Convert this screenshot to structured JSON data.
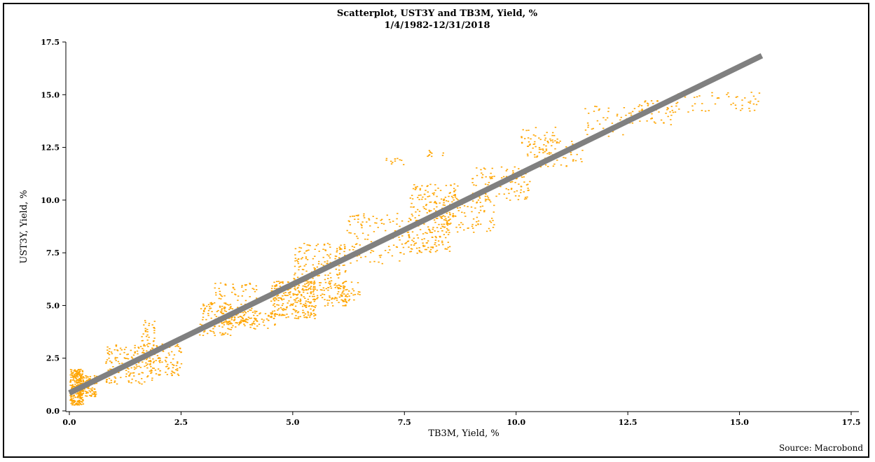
{
  "chart_data": {
    "type": "scatter",
    "title": "Scatterplot, UST3Y and TB3M, Yield, %",
    "subtitle": "1/4/1982-12/31/2018",
    "xlabel": "TB3M, Yield, %",
    "ylabel": "UST3Y, Yield, %",
    "source": "Source: Macrobond",
    "xlim": [
      0,
      17.5
    ],
    "ylim": [
      0,
      17.5
    ],
    "xticks": [
      "0.0",
      "2.5",
      "5.0",
      "7.5",
      "10.0",
      "12.5",
      "15.0",
      "17.5"
    ],
    "yticks": [
      "0.0",
      "2.5",
      "5.0",
      "7.5",
      "10.0",
      "12.5",
      "15.0",
      "17.5"
    ],
    "grid": false,
    "colors": {
      "points": "#ffa500",
      "trend": "#808080"
    },
    "trendline": {
      "x": [
        0.0,
        15.5
      ],
      "y": [
        0.85,
        16.85
      ]
    },
    "point_clusters": [
      {
        "x": [
          0.0,
          0.3
        ],
        "y": [
          0.3,
          2.0
        ],
        "n": 260
      },
      {
        "x": [
          0.1,
          0.6
        ],
        "y": [
          0.7,
          1.7
        ],
        "n": 120
      },
      {
        "x": [
          0.8,
          1.9
        ],
        "y": [
          1.3,
          3.2
        ],
        "n": 150
      },
      {
        "x": [
          1.6,
          1.9
        ],
        "y": [
          2.2,
          4.4
        ],
        "n": 60
      },
      {
        "x": [
          1.9,
          2.5
        ],
        "y": [
          1.7,
          3.2
        ],
        "n": 80
      },
      {
        "x": [
          2.9,
          3.6
        ],
        "y": [
          3.6,
          5.3
        ],
        "n": 110
      },
      {
        "x": [
          3.2,
          4.2
        ],
        "y": [
          4.2,
          6.1
        ],
        "n": 100
      },
      {
        "x": [
          3.6,
          4.6
        ],
        "y": [
          3.9,
          4.8
        ],
        "n": 90
      },
      {
        "x": [
          4.5,
          5.5
        ],
        "y": [
          4.4,
          6.2
        ],
        "n": 260
      },
      {
        "x": [
          5.0,
          6.2
        ],
        "y": [
          5.0,
          8.0
        ],
        "n": 220
      },
      {
        "x": [
          5.7,
          6.5
        ],
        "y": [
          5.2,
          6.2
        ],
        "n": 60
      },
      {
        "x": [
          6.2,
          7.5
        ],
        "y": [
          7.0,
          9.4
        ],
        "n": 110
      },
      {
        "x": [
          7.5,
          8.5
        ],
        "y": [
          7.5,
          9.2
        ],
        "n": 150
      },
      {
        "x": [
          7.6,
          8.7
        ],
        "y": [
          9.2,
          10.8
        ],
        "n": 110
      },
      {
        "x": [
          8.3,
          9.5
        ],
        "y": [
          8.5,
          10.3
        ],
        "n": 100
      },
      {
        "x": [
          9.0,
          10.3
        ],
        "y": [
          10.0,
          11.6
        ],
        "n": 110
      },
      {
        "x": [
          10.1,
          10.9
        ],
        "y": [
          12.0,
          13.5
        ],
        "n": 60
      },
      {
        "x": [
          10.5,
          11.5
        ],
        "y": [
          11.6,
          13.0
        ],
        "n": 50
      },
      {
        "x": [
          11.5,
          12.5
        ],
        "y": [
          13.0,
          14.5
        ],
        "n": 40
      },
      {
        "x": [
          12.5,
          13.5
        ],
        "y": [
          13.6,
          14.8
        ],
        "n": 60
      },
      {
        "x": [
          13.5,
          15.5
        ],
        "y": [
          14.2,
          15.2
        ],
        "n": 55
      },
      {
        "x": [
          7.0,
          7.6
        ],
        "y": [
          11.7,
          12.0
        ],
        "n": 12
      },
      {
        "x": [
          8.0,
          8.4
        ],
        "y": [
          12.0,
          12.4
        ],
        "n": 10
      }
    ]
  }
}
